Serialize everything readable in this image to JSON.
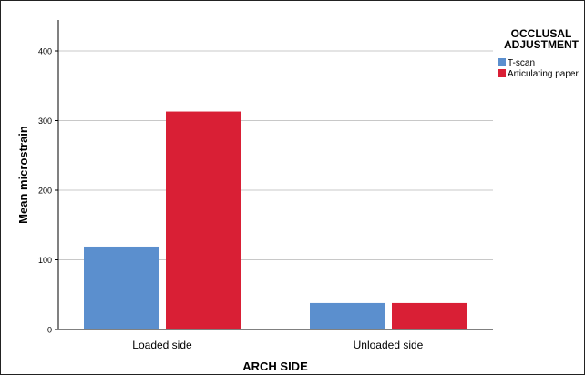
{
  "chart_data": {
    "type": "bar",
    "title": "",
    "xlabel": "ARCH SIDE",
    "ylabel": "Mean microstrain",
    "categories": [
      "Loaded side",
      "Unloaded side"
    ],
    "series": [
      {
        "name": "T-scan",
        "values": [
          119,
          38
        ],
        "color": "#5b8fce"
      },
      {
        "name": "Articulating paper",
        "values": [
          313,
          38
        ],
        "color": "#d91f35"
      }
    ],
    "ylim": [
      0,
      440
    ],
    "yticks": [
      0,
      100,
      200,
      300,
      400
    ],
    "grid": true,
    "legend": {
      "title_line1": "OCCLUSAL",
      "title_line2": "ADJUSTMENT",
      "placement": "top-right"
    }
  }
}
